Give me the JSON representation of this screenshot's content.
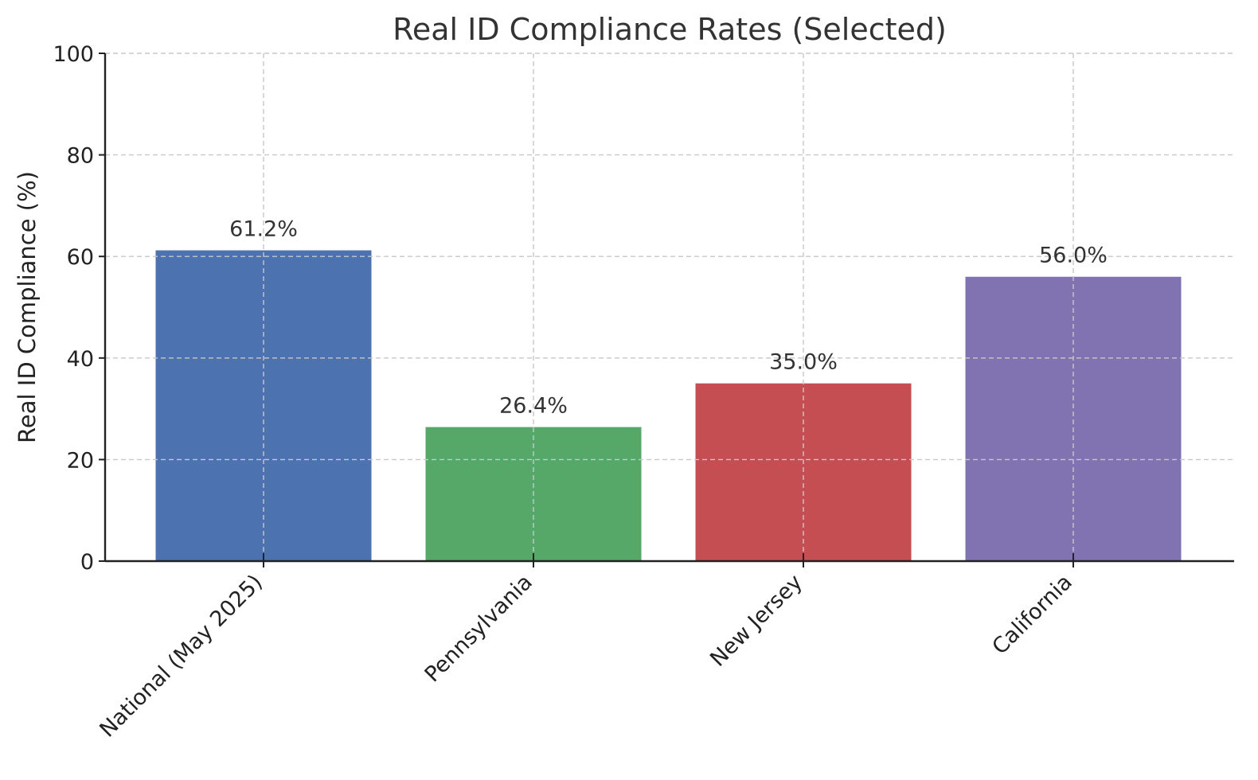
{
  "chart_data": {
    "type": "bar",
    "title": "Real ID Compliance Rates (Selected)",
    "xlabel": "",
    "ylabel": "Real ID Compliance (%)",
    "categories": [
      "National (May 2025)",
      "Pennsylvania",
      "New Jersey",
      "California"
    ],
    "values": [
      61.2,
      26.4,
      35.0,
      56.0
    ],
    "data_labels": [
      "61.2%",
      "26.4%",
      "35.0%",
      "56.0%"
    ],
    "colors": [
      "#4c72b0",
      "#55a868",
      "#c44e52",
      "#8172b2"
    ],
    "ylim": [
      0,
      100
    ],
    "yticks": [
      0,
      20,
      40,
      60,
      80,
      100
    ],
    "ytick_labels": [
      "0",
      "20",
      "40",
      "60",
      "80",
      "100"
    ],
    "grid": true,
    "legend": "none"
  }
}
